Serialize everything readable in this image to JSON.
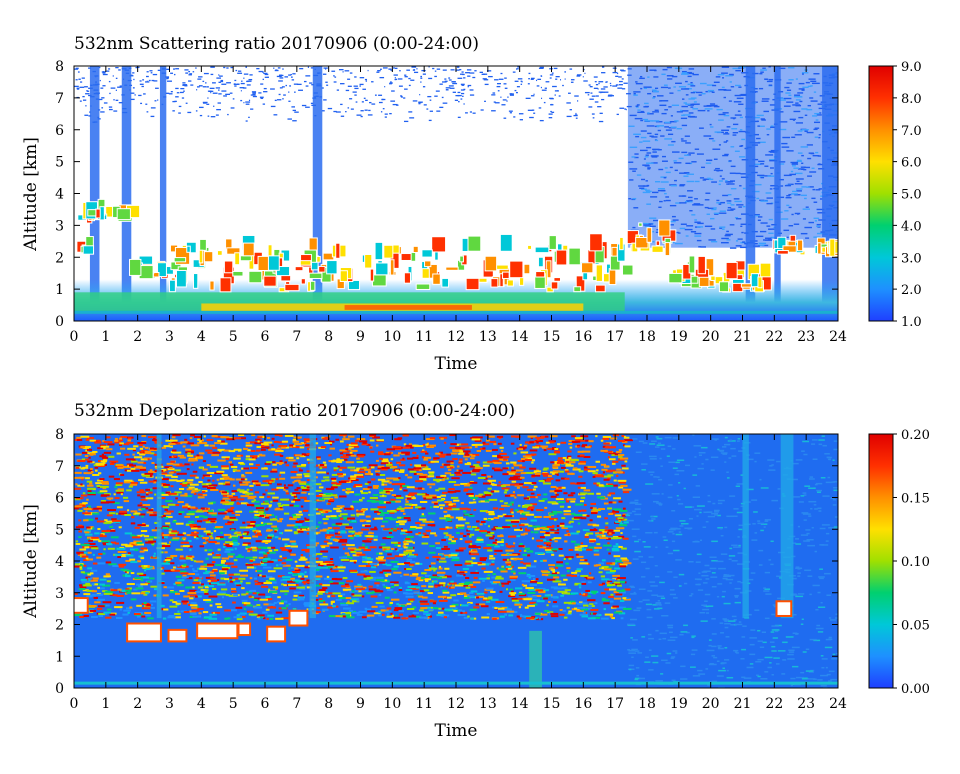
{
  "chart_data": [
    {
      "type": "heatmap",
      "title": "532nm Scattering ratio  20170906 (0:00-24:00)",
      "xlabel": "Time",
      "ylabel": "Altitude [km]",
      "xlim": [
        0,
        24
      ],
      "ylim": [
        0,
        8
      ],
      "x_ticks": [
        0,
        1,
        2,
        3,
        4,
        5,
        6,
        7,
        8,
        9,
        10,
        11,
        12,
        13,
        14,
        15,
        16,
        17,
        18,
        19,
        20,
        21,
        22,
        23,
        24
      ],
      "y_ticks": [
        0,
        1,
        2,
        3,
        4,
        5,
        6,
        7,
        8
      ],
      "colorbar": {
        "range": [
          1.0,
          9.0
        ],
        "ticks": [
          "1.0",
          "2.0",
          "3.0",
          "4.0",
          "5.0",
          "6.0",
          "7.0",
          "8.0",
          "9.0"
        ],
        "colors": [
          "#1f3fff",
          "#1e90ff",
          "#00c8d8",
          "#00d070",
          "#a0e000",
          "#ffe000",
          "#ff9000",
          "#ff3000",
          "#e00000"
        ]
      },
      "cloud_layers": [
        {
          "x0": 0.0,
          "x1": 1.7,
          "y0": 3.05,
          "y1": 3.4
        },
        {
          "x0": 0.0,
          "x1": 0.4,
          "y0": 2.0,
          "y1": 2.25
        },
        {
          "x0": 1.7,
          "x1": 2.9,
          "y0": 1.3,
          "y1": 1.55
        },
        {
          "x0": 2.9,
          "x1": 17.3,
          "y0": 0.9,
          "y1": 2.6
        },
        {
          "x0": 17.3,
          "x1": 18.6,
          "y0": 2.0,
          "y1": 3.4
        },
        {
          "x0": 18.6,
          "x1": 22.0,
          "y0": 0.9,
          "y1": 1.7
        },
        {
          "x0": 21.9,
          "x1": 23.6,
          "y0": 2.05,
          "y1": 2.3
        },
        {
          "x0": 23.6,
          "x1": 24.0,
          "y0": 2.0,
          "y1": 2.2
        }
      ],
      "boundary_layer_top_km": 0.9,
      "grid": false,
      "legend": "colorbar-right"
    },
    {
      "type": "heatmap",
      "title": "532nm Depolarization ratio  20170906 (0:00-24:00)",
      "xlabel": "Time",
      "ylabel": "Altitude [km]",
      "xlim": [
        0,
        24
      ],
      "ylim": [
        0,
        8
      ],
      "x_ticks": [
        0,
        1,
        2,
        3,
        4,
        5,
        6,
        7,
        8,
        9,
        10,
        11,
        12,
        13,
        14,
        15,
        16,
        17,
        18,
        19,
        20,
        21,
        22,
        23,
        24
      ],
      "y_ticks": [
        0,
        1,
        2,
        3,
        4,
        5,
        6,
        7,
        8
      ],
      "colorbar": {
        "range": [
          0.0,
          0.2
        ],
        "ticks": [
          "0.00",
          "0.05",
          "0.10",
          "0.15",
          "0.20"
        ],
        "colors": [
          "#1f3fff",
          "#1e90ff",
          "#00c8d8",
          "#00d070",
          "#a0e000",
          "#ffe000",
          "#ff9000",
          "#ff3000",
          "#e00000"
        ]
      },
      "noisy_region": {
        "x0": 0.0,
        "x1": 17.3,
        "y0": 2.2,
        "y1": 8.0
      },
      "saturated_patches": [
        {
          "x0": 1.7,
          "x1": 2.7,
          "y0": 1.5,
          "y1": 2.0
        },
        {
          "x0": 3.0,
          "x1": 3.5,
          "y0": 1.5,
          "y1": 1.8
        },
        {
          "x0": 3.9,
          "x1": 5.1,
          "y0": 1.6,
          "y1": 2.0
        },
        {
          "x0": 5.2,
          "x1": 5.5,
          "y0": 1.7,
          "y1": 2.0
        },
        {
          "x0": 6.1,
          "x1": 6.6,
          "y0": 1.5,
          "y1": 1.9
        },
        {
          "x0": 6.8,
          "x1": 7.3,
          "y0": 2.0,
          "y1": 2.4
        },
        {
          "x0": 0.0,
          "x1": 0.4,
          "y0": 2.4,
          "y1": 2.8
        },
        {
          "x0": 22.1,
          "x1": 22.5,
          "y0": 2.3,
          "y1": 2.7
        }
      ],
      "grid": false,
      "legend": "colorbar-right"
    }
  ]
}
